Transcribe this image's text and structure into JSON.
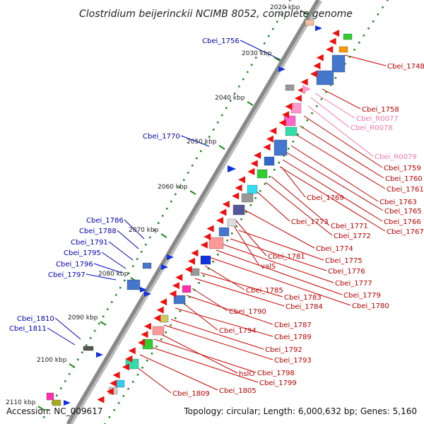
{
  "title": "Clostridium beijerinckii NCIMB 8052, complete genome",
  "footer": {
    "accession": "Accession: NC_009617",
    "summary": "Topology: circular; Length: 6,000,632 bp; Genes: 5,160"
  },
  "colors": {
    "backbone": "#888888",
    "tick": "#228822",
    "left_labels": "#0000cc",
    "right_labels": "#cc0000",
    "rna_labels": "#ff77aa",
    "gene_red": "#ee1111",
    "gene_blue": "#1133dd",
    "gene_pink": "#ff99cc"
  },
  "scale_labels": [
    "2020 kbp",
    "2030 kbp",
    "2040 kbp",
    "2050 kbp",
    "2060 kbp",
    "2070 kbp",
    "2080 kbp",
    "2090 kbp",
    "2100 kbp",
    "2110 kbp"
  ],
  "left_genes": [
    "Cbei_1756",
    "Cbei_1770",
    "Cbei_1786",
    "Cbei_1788",
    "Cbei_1791",
    "Cbei_1795",
    "Cbei_1796",
    "Cbei_1797",
    "Cbei_1810",
    "Cbei_1811"
  ],
  "right_genes": [
    "Cbei_1748",
    "Cbei_1758",
    "Cbei_R0077",
    "Cbei_R0078",
    "Cbei_R0079",
    "Cbei_1759",
    "Cbei_1760",
    "Cbei_1761",
    "Cbei_1769",
    "Cbei_1763",
    "Cbei_1765",
    "Cbei_1766",
    "Cbei_1767",
    "Cbei_1773",
    "Cbei_1771",
    "Cbei_1772",
    "Cbei_1774",
    "Cbei_1781",
    "valS",
    "Cbei_1775",
    "Cbei_1776",
    "Cbei_1777",
    "Cbei_1779",
    "Cbei_1780",
    "Cbei_1785",
    "Cbei_1783",
    "Cbei_1784",
    "Cbei_1790",
    "Cbei_1787",
    "Cbei_1794",
    "Cbei_1789",
    "Cbei_1792",
    "Cbei_1793",
    "hslO",
    "Cbei_1798",
    "Cbei_1799",
    "Cbei_1805",
    "Cbei_1809"
  ]
}
